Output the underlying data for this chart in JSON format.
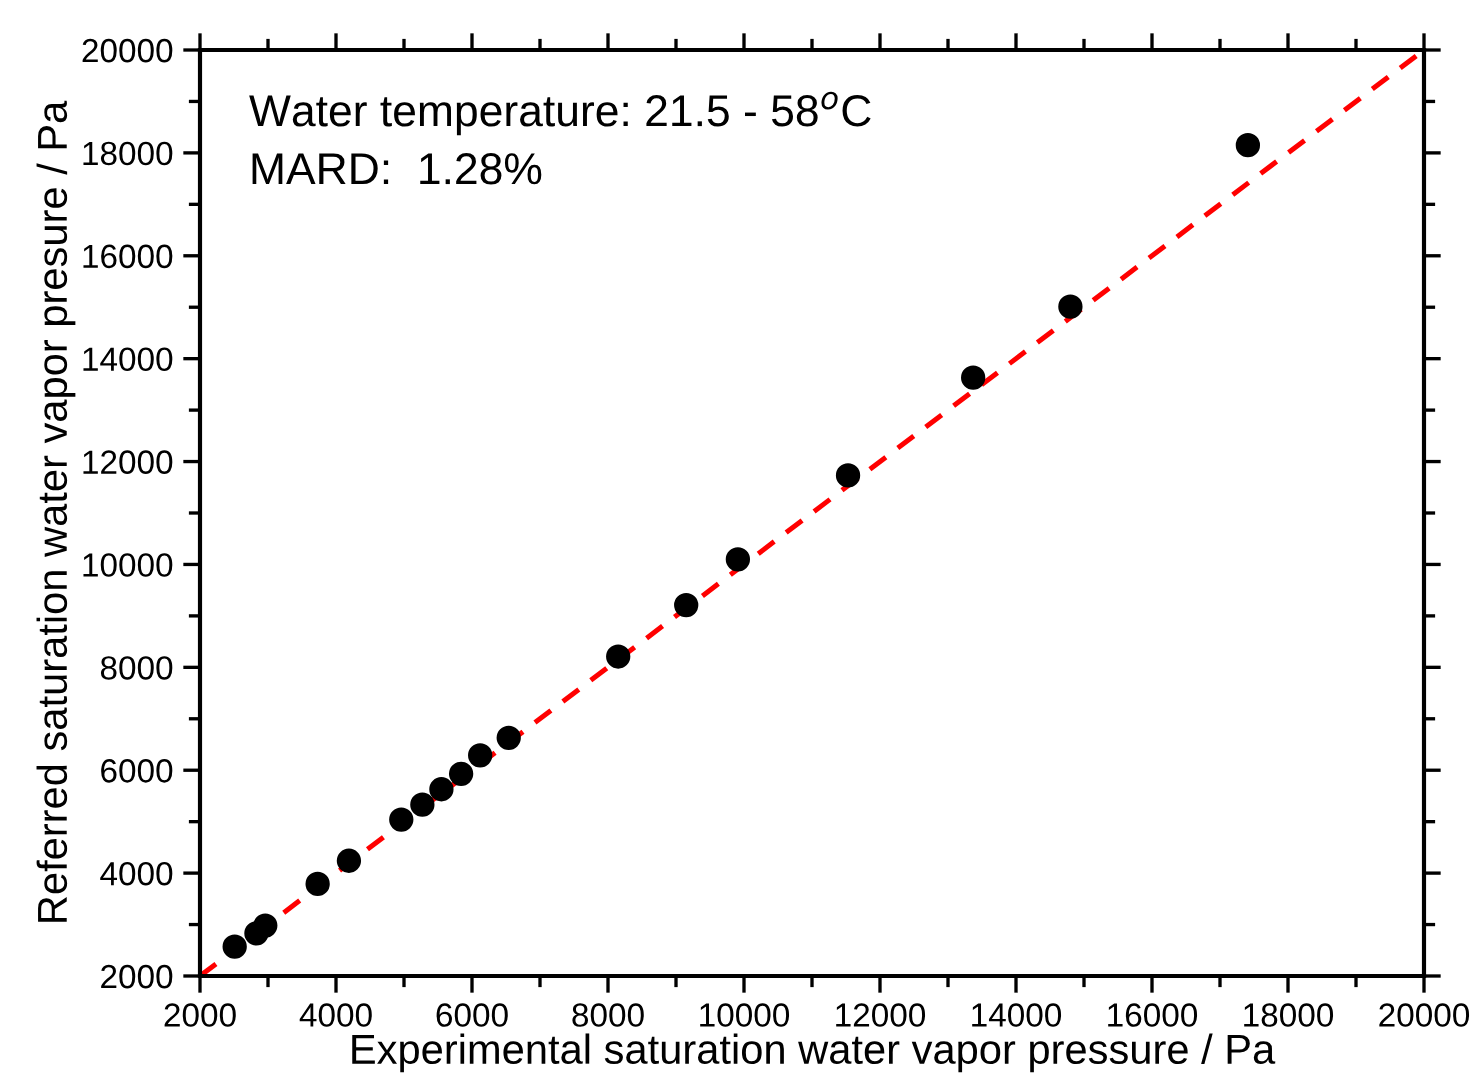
{
  "chart_data": {
    "type": "scatter",
    "xlabel": "Experimental saturation water vapor pressure / Pa",
    "ylabel": "Referred saturation water vapor presure / Pa",
    "annotations": [
      "Water temperature: 21.5 - 58$^{o}$C",
      "MARD:  1.28%"
    ],
    "series": [
      {
        "color": "#000000",
        "marker": "circle",
        "x": [
          2510,
          2830,
          2960,
          3730,
          4190,
          4960,
          5270,
          5550,
          5840,
          6120,
          6540,
          8150,
          9150,
          9910,
          11530,
          13370,
          14800,
          17410
        ],
        "values": [
          2570,
          2830,
          2980,
          3790,
          4240,
          5040,
          5330,
          5630,
          5930,
          6290,
          6630,
          8210,
          9210,
          10100,
          11730,
          13630,
          15010,
          18150
        ]
      },
      {
        "type": "line",
        "color": "#ff0000",
        "line_style": "dashed",
        "x": [
          2000,
          20000
        ],
        "values": [
          2000,
          20000
        ]
      }
    ],
    "xlim": [
      2000,
      20000
    ],
    "ylim": [
      2000,
      20000
    ],
    "xticks": [
      2000,
      4000,
      6000,
      8000,
      10000,
      12000,
      14000,
      16000,
      18000,
      20000
    ],
    "yticks": [
      2000,
      4000,
      6000,
      8000,
      10000,
      12000,
      14000,
      16000,
      18000,
      20000
    ],
    "grid": false
  }
}
